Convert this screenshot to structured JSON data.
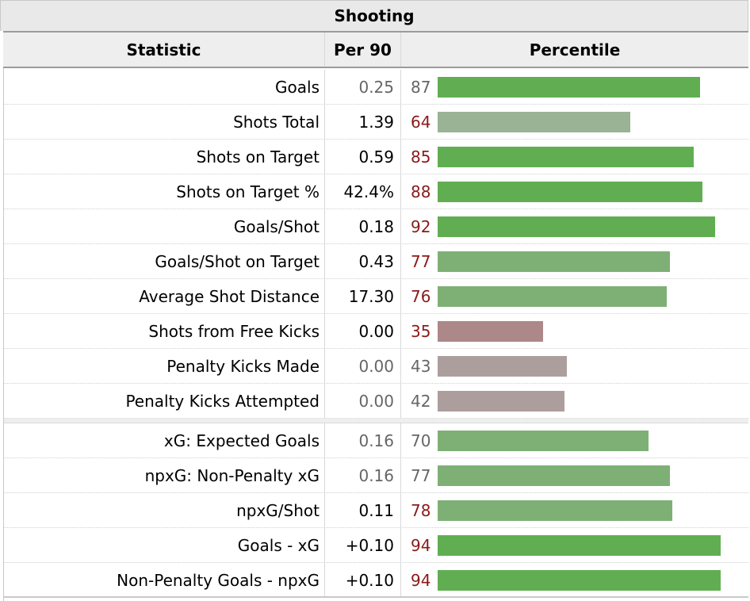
{
  "title": "Shooting",
  "headers": {
    "statistic": "Statistic",
    "per90": "Per 90",
    "percentile": "Percentile"
  },
  "colors": {
    "strong_green": "#61ae52",
    "mid_green": "#7eb075",
    "pale_green": "#99b394",
    "low_red": "#ad8888",
    "grey": "#ad9e9e",
    "red_text": "#8b1a1a",
    "grey_text": "#666666"
  },
  "rows_group1": [
    {
      "stat": "Goals",
      "per90": "0.25",
      "percentile": "87",
      "pct_value": 87,
      "dim": true,
      "bar_color": "#61ae52"
    },
    {
      "stat": "Shots Total",
      "per90": "1.39",
      "percentile": "64",
      "pct_value": 64,
      "dim": false,
      "bar_color": "#99b394"
    },
    {
      "stat": "Shots on Target",
      "per90": "0.59",
      "percentile": "85",
      "pct_value": 85,
      "dim": false,
      "bar_color": "#61ae52"
    },
    {
      "stat": "Shots on Target %",
      "per90": "42.4%",
      "percentile": "88",
      "pct_value": 88,
      "dim": false,
      "bar_color": "#61ae52"
    },
    {
      "stat": "Goals/Shot",
      "per90": "0.18",
      "percentile": "92",
      "pct_value": 92,
      "dim": false,
      "bar_color": "#61ae52"
    },
    {
      "stat": "Goals/Shot on Target",
      "per90": "0.43",
      "percentile": "77",
      "pct_value": 77,
      "dim": false,
      "bar_color": "#7eb075"
    },
    {
      "stat": "Average Shot Distance",
      "per90": "17.30",
      "percentile": "76",
      "pct_value": 76,
      "dim": false,
      "bar_color": "#7eb075"
    },
    {
      "stat": "Shots from Free Kicks",
      "per90": "0.00",
      "percentile": "35",
      "pct_value": 35,
      "dim": false,
      "bar_color": "#ad8888"
    },
    {
      "stat": "Penalty Kicks Made",
      "per90": "0.00",
      "percentile": "43",
      "pct_value": 43,
      "dim": true,
      "bar_color": "#ad9e9e"
    },
    {
      "stat": "Penalty Kicks Attempted",
      "per90": "0.00",
      "percentile": "42",
      "pct_value": 42,
      "dim": true,
      "bar_color": "#ad9e9e"
    }
  ],
  "rows_group2": [
    {
      "stat": "xG: Expected Goals",
      "per90": "0.16",
      "percentile": "70",
      "pct_value": 70,
      "dim": true,
      "bar_color": "#7eb075"
    },
    {
      "stat": "npxG: Non-Penalty xG",
      "per90": "0.16",
      "percentile": "77",
      "pct_value": 77,
      "dim": true,
      "bar_color": "#7eb075"
    },
    {
      "stat": "npxG/Shot",
      "per90": "0.11",
      "percentile": "78",
      "pct_value": 78,
      "dim": false,
      "bar_color": "#7eb075"
    },
    {
      "stat": "Goals - xG",
      "per90": "+0.10",
      "percentile": "94",
      "pct_value": 94,
      "dim": false,
      "bar_color": "#61ae52"
    },
    {
      "stat": "Non-Penalty Goals - npxG",
      "per90": "+0.10",
      "percentile": "94",
      "pct_value": 94,
      "dim": false,
      "bar_color": "#61ae52"
    }
  ]
}
